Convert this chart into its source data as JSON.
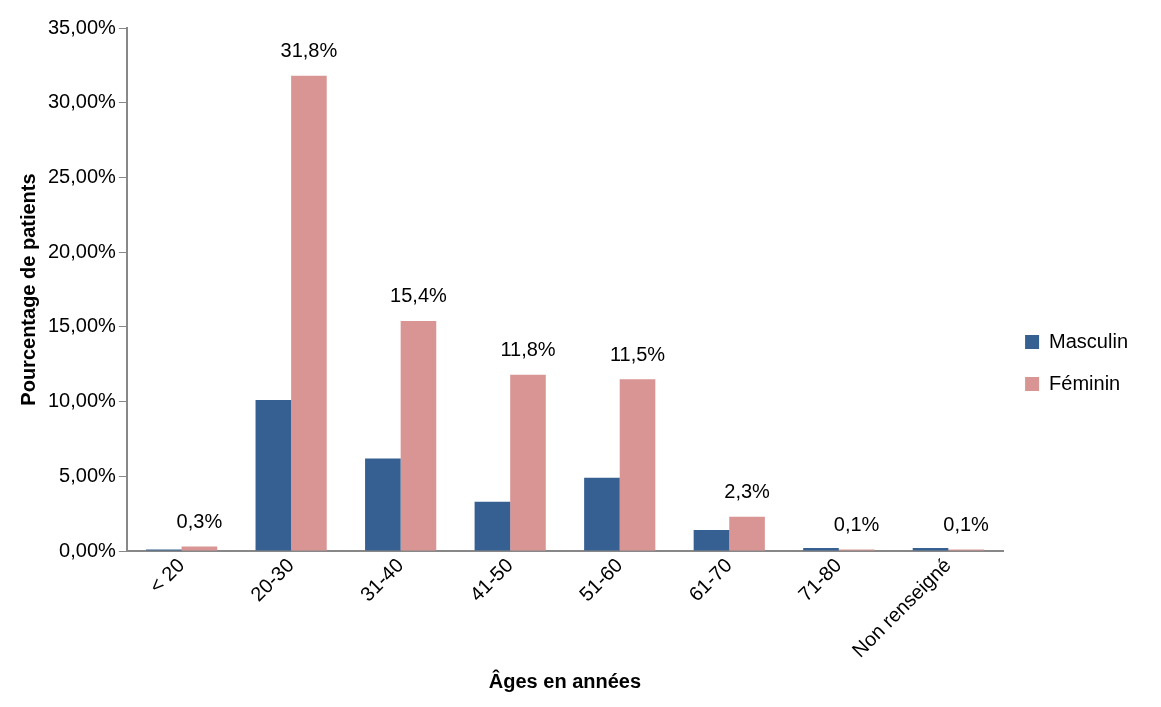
{
  "chart_data": {
    "type": "bar",
    "xlabel": "Âges en années",
    "ylabel": "Pourcentage de patients",
    "categories": [
      "< 20",
      "20-30",
      "31-40",
      "41-50",
      "51-60",
      "61-70",
      "71-80",
      "Non renseigné"
    ],
    "series": [
      {
        "name": "Masculin",
        "color": "#366092",
        "values": [
          0.1,
          10.1,
          6.2,
          3.3,
          4.9,
          1.4,
          0.2,
          0.2
        ]
      },
      {
        "name": "Féminin",
        "color": "#d99594",
        "values": [
          0.3,
          31.8,
          15.4,
          11.8,
          11.5,
          2.3,
          0.1,
          0.1
        ],
        "value_labels": [
          "0,3%",
          "31,8%",
          "15,4%",
          "11,8%",
          "11,5%",
          "2,3%",
          "0,1%",
          "0,1%"
        ]
      }
    ],
    "ylim": [
      0,
      35
    ],
    "yticks": [
      {
        "value": 0,
        "label": "0,00%"
      },
      {
        "value": 5,
        "label": "5,00%"
      },
      {
        "value": 10,
        "label": "10,00%"
      },
      {
        "value": 15,
        "label": "15,00%"
      },
      {
        "value": 20,
        "label": "20,00%"
      },
      {
        "value": 25,
        "label": "25,00%"
      },
      {
        "value": 30,
        "label": "30,00%"
      },
      {
        "value": 35,
        "label": "35,00%"
      }
    ],
    "grid": false,
    "legend": "right"
  }
}
